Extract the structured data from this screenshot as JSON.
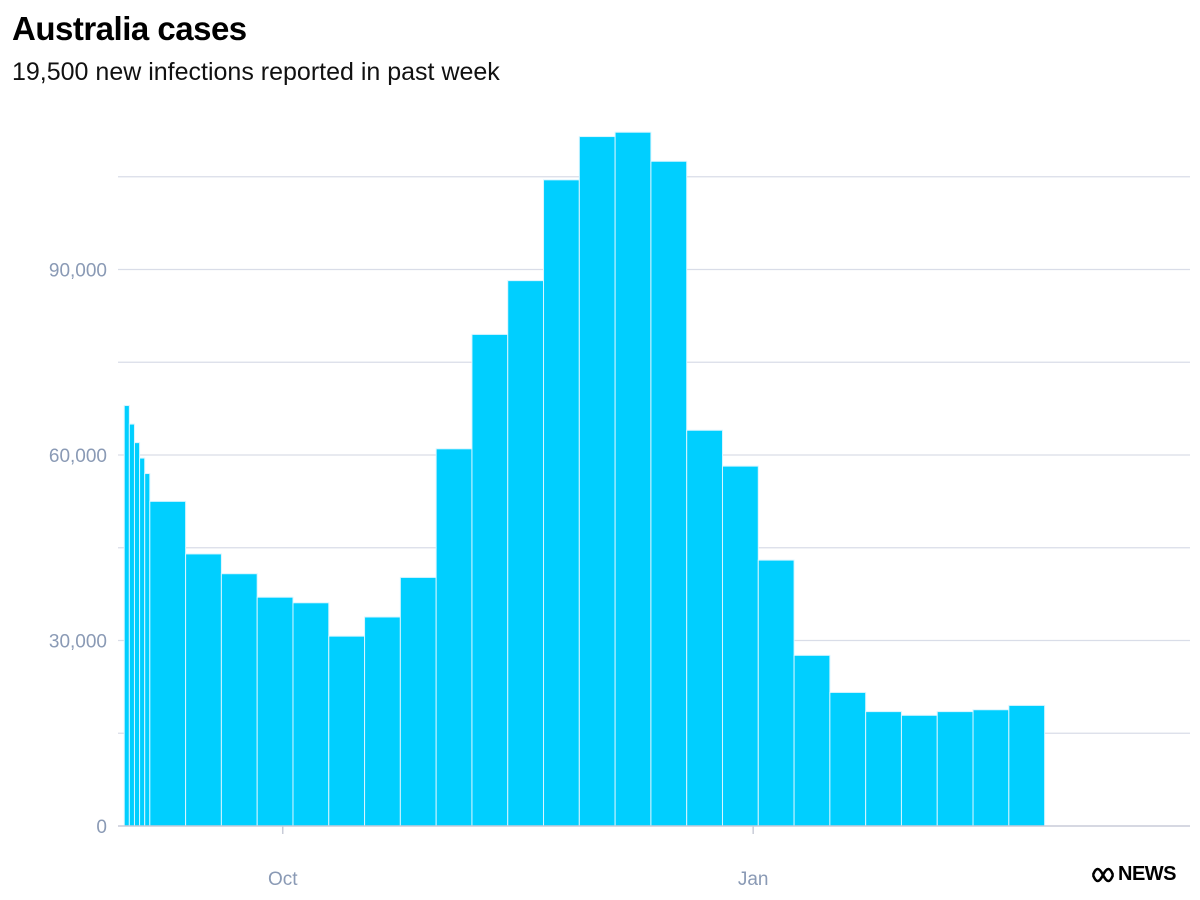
{
  "header": {
    "title": "Australia cases",
    "subtitle": "19,500 new infections reported in past week"
  },
  "branding": {
    "logo_text": "NEWS"
  },
  "colors": {
    "bar": "#00cfff",
    "bar_edge": "#d8f5ff",
    "grid": "#d9dde8",
    "tick_text": "#8a9ab5",
    "axis": "#c8ccd8"
  },
  "chart_data": {
    "type": "bar",
    "title": "Australia cases",
    "subtitle": "19,500 new infections reported in past week",
    "xlabel": "",
    "ylabel": "",
    "ylim": [
      0,
      120000
    ],
    "y_ticks": [
      0,
      30000,
      60000,
      90000
    ],
    "y_tick_labels": [
      "0",
      "30,000",
      "60,000",
      "90,000"
    ],
    "x_tick_labels": [
      {
        "label": "Oct",
        "date": "2022-10-01"
      },
      {
        "label": "Jan",
        "date": "2023-01-01"
      }
    ],
    "grid": true,
    "bars": [
      {
        "start": "2022-08-31",
        "end": "2022-09-01",
        "value": 68000
      },
      {
        "start": "2022-09-01",
        "end": "2022-09-02",
        "value": 65000
      },
      {
        "start": "2022-09-02",
        "end": "2022-09-03",
        "value": 62000
      },
      {
        "start": "2022-09-03",
        "end": "2022-09-04",
        "value": 59500
      },
      {
        "start": "2022-09-04",
        "end": "2022-09-05",
        "value": 57000
      },
      {
        "start": "2022-09-05",
        "end": "2022-09-12",
        "value": 52500
      },
      {
        "start": "2022-09-12",
        "end": "2022-09-19",
        "value": 44000
      },
      {
        "start": "2022-09-19",
        "end": "2022-09-26",
        "value": 40800
      },
      {
        "start": "2022-09-26",
        "end": "2022-10-03",
        "value": 37000
      },
      {
        "start": "2022-10-03",
        "end": "2022-10-10",
        "value": 36100
      },
      {
        "start": "2022-10-10",
        "end": "2022-10-17",
        "value": 30700
      },
      {
        "start": "2022-10-17",
        "end": "2022-10-24",
        "value": 33800
      },
      {
        "start": "2022-10-24",
        "end": "2022-10-31",
        "value": 40200
      },
      {
        "start": "2022-10-31",
        "end": "2022-11-07",
        "value": 61000
      },
      {
        "start": "2022-11-07",
        "end": "2022-11-14",
        "value": 79500
      },
      {
        "start": "2022-11-14",
        "end": "2022-11-21",
        "value": 88200
      },
      {
        "start": "2022-11-21",
        "end": "2022-11-28",
        "value": 104500
      },
      {
        "start": "2022-11-28",
        "end": "2022-12-05",
        "value": 111500
      },
      {
        "start": "2022-12-05",
        "end": "2022-12-12",
        "value": 112200
      },
      {
        "start": "2022-12-12",
        "end": "2022-12-19",
        "value": 107500
      },
      {
        "start": "2022-12-19",
        "end": "2022-12-26",
        "value": 64000
      },
      {
        "start": "2022-12-26",
        "end": "2023-01-02",
        "value": 58200
      },
      {
        "start": "2023-01-02",
        "end": "2023-01-09",
        "value": 43000
      },
      {
        "start": "2023-01-09",
        "end": "2023-01-16",
        "value": 27600
      },
      {
        "start": "2023-01-16",
        "end": "2023-01-23",
        "value": 21600
      },
      {
        "start": "2023-01-23",
        "end": "2023-01-30",
        "value": 18500
      },
      {
        "start": "2023-01-30",
        "end": "2023-02-06",
        "value": 17900
      },
      {
        "start": "2023-02-06",
        "end": "2023-02-13",
        "value": 18500
      },
      {
        "start": "2023-02-13",
        "end": "2023-02-20",
        "value": 18800
      },
      {
        "start": "2023-02-20",
        "end": "2023-02-27",
        "value": 19500
      }
    ]
  }
}
